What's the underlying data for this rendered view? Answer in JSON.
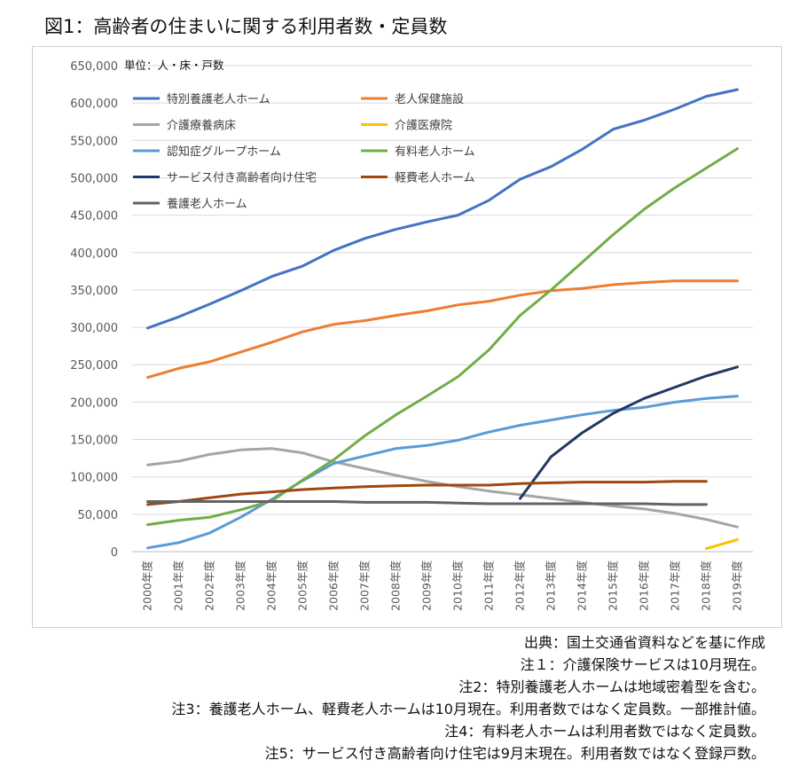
{
  "title": "図1：高齢者の住まいに関する利用者数・定員数",
  "chart_data": {
    "type": "line",
    "unit_label": "単位：人・床・戸数",
    "categories": [
      "2000年度",
      "2001年度",
      "2002年度",
      "2003年度",
      "2004年度",
      "2005年度",
      "2006年度",
      "2007年度",
      "2008年度",
      "2009年度",
      "2010年度",
      "2011年度",
      "2012年度",
      "2013年度",
      "2014年度",
      "2015年度",
      "2016年度",
      "2017年度",
      "2018年度",
      "2019年度"
    ],
    "ylim": [
      0,
      650000
    ],
    "yticks": [
      0,
      50000,
      100000,
      150000,
      200000,
      250000,
      300000,
      350000,
      400000,
      450000,
      500000,
      550000,
      600000,
      650000
    ],
    "ytick_labels": [
      "0",
      "50,000",
      "100,000",
      "150,000",
      "200,000",
      "250,000",
      "300,000",
      "350,000",
      "400,000",
      "450,000",
      "500,000",
      "550,000",
      "600,000",
      "650,000"
    ],
    "grid": true,
    "legend_position": "top-left",
    "series": [
      {
        "name": "特別養護老人ホーム",
        "color": "#4472c4",
        "values": [
          299000,
          314000,
          331000,
          349000,
          368000,
          382000,
          403000,
          419000,
          431000,
          441000,
          450000,
          470000,
          498000,
          515000,
          538000,
          565000,
          577000,
          592000,
          609000,
          618000
        ]
      },
      {
        "name": "老人保健施設",
        "color": "#ed7d31",
        "values": [
          233000,
          245000,
          254000,
          267000,
          280000,
          294000,
          304000,
          309000,
          316000,
          322000,
          330000,
          335000,
          343000,
          349000,
          352000,
          357000,
          360000,
          362000,
          362000,
          362000
        ]
      },
      {
        "name": "介護療養病床",
        "color": "#a5a5a5",
        "values": [
          116000,
          121000,
          130000,
          136000,
          138000,
          132000,
          120000,
          111000,
          102000,
          94000,
          87000,
          81000,
          76000,
          71000,
          66000,
          61000,
          57000,
          51000,
          43000,
          33000
        ]
      },
      {
        "name": "介護医療院",
        "color": "#ffc000",
        "values": [
          null,
          null,
          null,
          null,
          null,
          null,
          null,
          null,
          null,
          null,
          null,
          null,
          null,
          null,
          null,
          null,
          null,
          null,
          4000,
          16000
        ]
      },
      {
        "name": "認知症グループホーム",
        "color": "#5b9bd5",
        "values": [
          5000,
          12000,
          25000,
          46000,
          70000,
          95000,
          118000,
          128000,
          138000,
          142000,
          149000,
          160000,
          169000,
          176000,
          183000,
          189000,
          193000,
          200000,
          205000,
          208000
        ]
      },
      {
        "name": "有料老人ホーム",
        "color": "#70ad47",
        "values": [
          36000,
          42000,
          46000,
          56000,
          68000,
          96000,
          123000,
          155000,
          183000,
          208000,
          234000,
          270000,
          316000,
          350000,
          387000,
          424000,
          458000,
          487000,
          513000,
          539000
        ]
      },
      {
        "name": "サービス付き高齢者向け住宅",
        "color": "#1f3864",
        "values": [
          null,
          null,
          null,
          null,
          null,
          null,
          null,
          null,
          null,
          null,
          null,
          null,
          71000,
          127000,
          159000,
          185000,
          205000,
          220000,
          235000,
          247000
        ]
      },
      {
        "name": "軽費老人ホーム",
        "color": "#9e480e",
        "values": [
          63000,
          67000,
          72000,
          77000,
          80000,
          83000,
          85000,
          87000,
          88000,
          89000,
          89000,
          89000,
          91000,
          92000,
          93000,
          93000,
          93000,
          94000,
          94000,
          null
        ]
      },
      {
        "name": "養護老人ホーム",
        "color": "#636363",
        "values": [
          67000,
          67000,
          67000,
          67000,
          67000,
          67000,
          67000,
          66000,
          66000,
          66000,
          65000,
          64000,
          64000,
          64000,
          64000,
          64000,
          64000,
          63000,
          63000,
          null
        ]
      }
    ]
  },
  "notes": [
    "出典：国土交通省資料などを基に作成",
    "注１：介護保険サービスは10月現在。",
    "注2：特別養護老人ホームは地域密着型を含む。",
    "注3：養護老人ホーム、軽費老人ホームは10月現在。利用者数ではなく定員数。一部推計値。",
    "注4：有料老人ホームは利用者数ではなく定員数。",
    "注5：サービス付き高齢者向け住宅は9月末現在。利用者数ではなく登録戸数。"
  ]
}
